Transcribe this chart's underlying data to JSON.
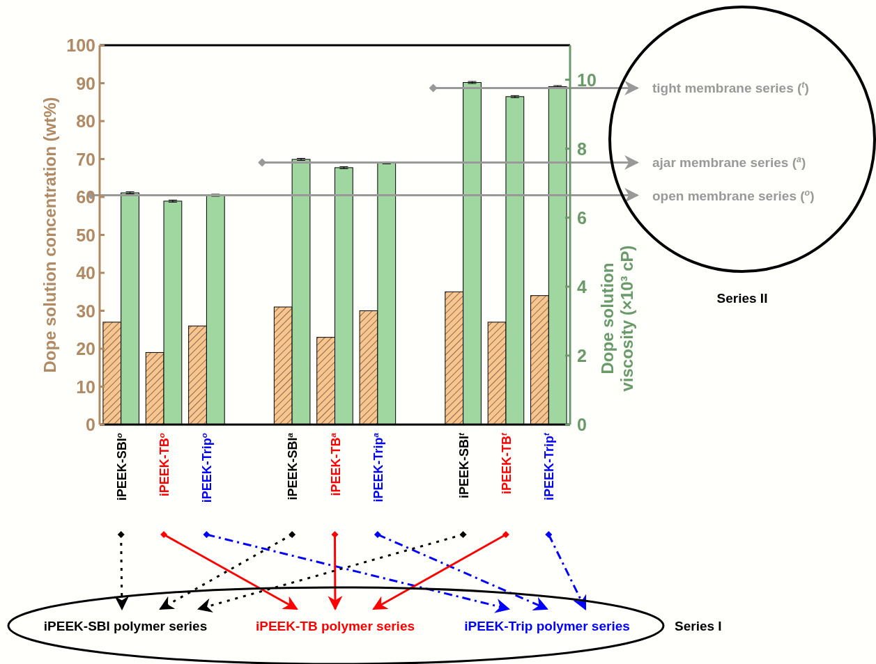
{
  "chart_data": {
    "type": "bar",
    "categories": [
      "iPEEK-SBI$^{o}$",
      "iPEEK-TB$^{o}$",
      "iPEEK-Trip$^{o}$",
      "iPEEK-SBI$^{a}$",
      "iPEEK-TB$^{a}$",
      "iPEEK-Trip$^{a}$",
      "iPEEK-SBI$^{t}$",
      "iPEEK-TB$^{t}$",
      "iPEEK-Trip$^{t}$"
    ],
    "series": [
      {
        "color": "#f9c58f",
        "values": [
          27,
          19,
          26,
          31,
          23,
          30,
          35,
          27,
          34
        ]
      },
      {
        "axis": "y2",
        "color": "#a0d6a0",
        "values": [
          6.72,
          6.48,
          6.65,
          7.69,
          7.45,
          7.59,
          9.92,
          9.51,
          9.8
        ],
        "errors": [
          0.03,
          0.03,
          0.03,
          0.03,
          0.03,
          0.03,
          0.03,
          0.03,
          0.03
        ]
      }
    ],
    "ylabel": "Dope solution concentration (wt%)",
    "y2label": "Dope solution viscosity (×10³ cP)",
    "ylim": [
      0,
      100
    ],
    "yticks": [
      0,
      10,
      20,
      30,
      40,
      50,
      60,
      70,
      80,
      90,
      100
    ],
    "y2lim": [
      0,
      11
    ],
    "y2ticks": [
      0,
      2,
      4,
      6,
      8,
      10
    ],
    "ref_lines": [
      {
        "axis": "y2",
        "value": 6.65,
        "label": "open membrane series ($^{o}$)",
        "color": "#999999"
      },
      {
        "axis": "y2",
        "value": 7.6,
        "label": "ajar membrane series ($^{a}$)",
        "color": "#999999"
      },
      {
        "axis": "y2",
        "value": 9.76,
        "label": "tight membrane series ($^{t}$)",
        "color": "#999999"
      }
    ],
    "annotations": [
      "iPEEK-SBI polymer series",
      "iPEEK-TB polymer series",
      "iPEEK-Trip polymer series",
      "Series I",
      "Series II"
    ],
    "grid": false
  }
}
